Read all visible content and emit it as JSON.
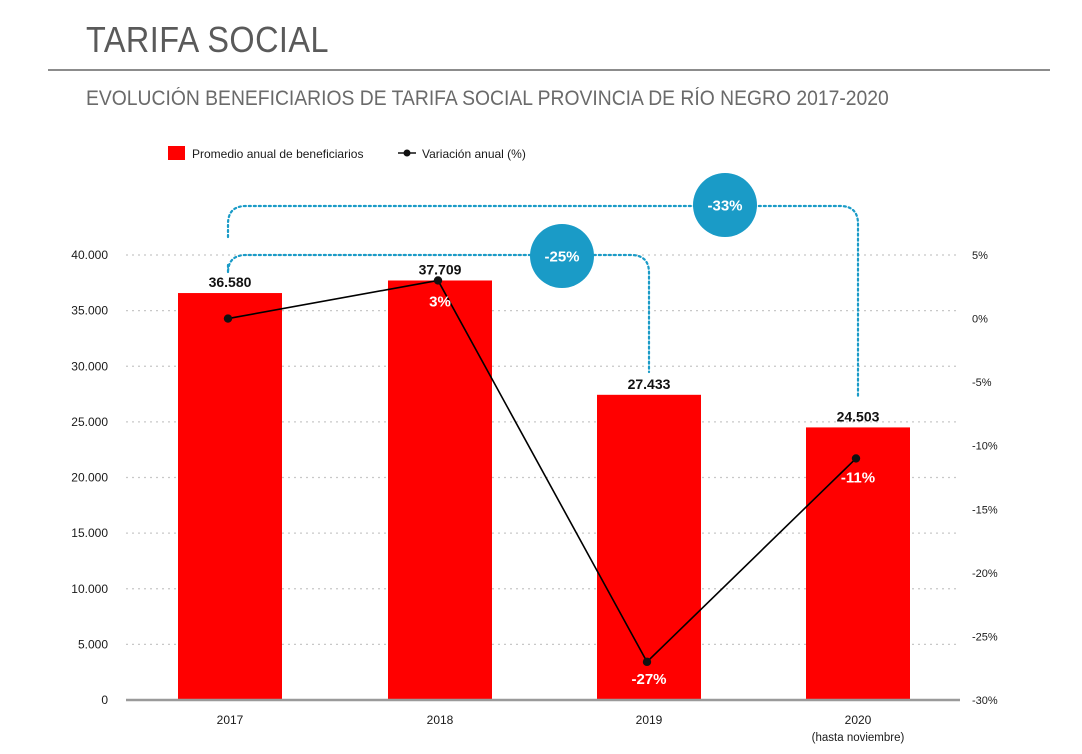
{
  "header": {
    "page_title": "TARIFA SOCIAL"
  },
  "chart_data": {
    "type": "bar",
    "title": "EVOLUCIÓN BENEFICIARIOS DE TARIFA SOCIAL PROVINCIA DE RÍO NEGRO 2017-2020",
    "categories": [
      "2017",
      "2018",
      "2019",
      "2020"
    ],
    "category_sublabels": [
      "",
      "",
      "",
      "(hasta noviembre)"
    ],
    "series": [
      {
        "name": "Promedio anual de beneficiarios",
        "type": "bar",
        "axis": "left",
        "color": "#ff0000",
        "values": [
          36580,
          37709,
          27433,
          24503
        ],
        "value_labels": [
          "36.580",
          "37.709",
          "27.433",
          "24.503"
        ]
      },
      {
        "name": "Variación anual (%)",
        "type": "line",
        "axis": "right",
        "color": "#000000",
        "values": [
          0,
          3,
          -27,
          -11
        ],
        "value_labels": [
          "",
          "3%",
          "-27%",
          "-11%"
        ]
      }
    ],
    "y_left": {
      "ylim": [
        0,
        40000
      ],
      "ticks": [
        0,
        5000,
        10000,
        15000,
        20000,
        25000,
        30000,
        35000,
        40000
      ],
      "tick_labels": [
        "0",
        "5.000",
        "10.000",
        "15.000",
        "20.000",
        "25.000",
        "30.000",
        "35.000",
        "40.000"
      ]
    },
    "y_right": {
      "ylim": [
        -30,
        5
      ],
      "ticks": [
        5,
        0,
        -5,
        -10,
        -15,
        -20,
        -25,
        -30
      ],
      "tick_labels": [
        "5%",
        "0%",
        "-5%",
        "-10%",
        "-15%",
        "-20%",
        "-25%",
        "-30%"
      ]
    },
    "grid": true,
    "legend_position": "top-left",
    "annotations": [
      {
        "label": "-25%",
        "from": "2017",
        "to": "2019",
        "color": "#1a9bc7"
      },
      {
        "label": "-33%",
        "from": "2017",
        "to": "2020",
        "color": "#1a9bc7"
      }
    ]
  }
}
